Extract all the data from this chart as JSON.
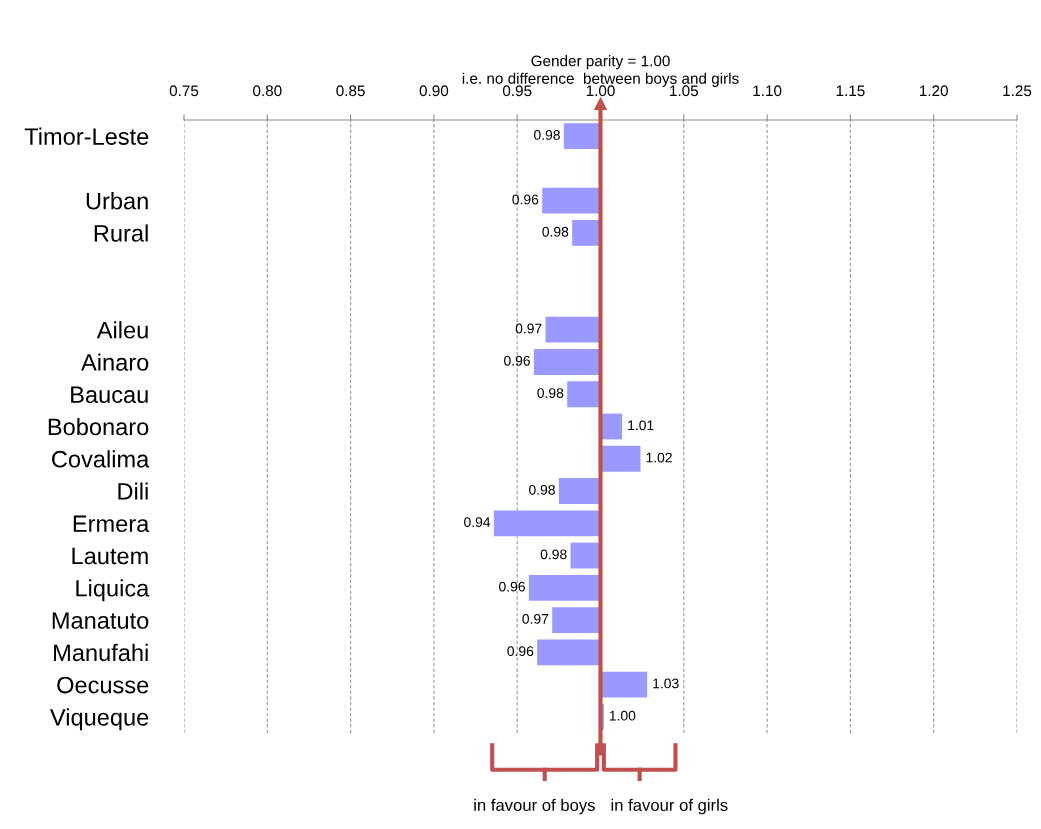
{
  "chart_data": {
    "type": "bar",
    "orientation": "horizontal",
    "categories": [
      "Timor-Leste",
      null,
      "Urban",
      "Rural",
      null,
      null,
      "Aileu",
      "Ainaro",
      "Baucau",
      "Bobonaro",
      "Covalima",
      "Dili",
      "Ermera",
      "Lautem",
      "Liquica",
      "Manatuto",
      "Manufahi",
      "Oecusse",
      "Viqueque"
    ],
    "base": [
      1.0,
      null,
      1.0,
      1.0,
      null,
      null,
      1.0,
      1.0,
      1.0,
      1.0,
      1.0,
      1.0,
      1.0,
      1.0,
      1.0,
      1.0,
      1.0,
      1.0,
      1.0
    ],
    "values": [
      -0.022,
      null,
      -0.035,
      -0.017,
      null,
      null,
      -0.033,
      -0.04,
      -0.02,
      0.013,
      0.024,
      -0.025,
      -0.064,
      -0.018,
      -0.043,
      -0.029,
      -0.038,
      0.028,
      0.002
    ],
    "value_labels": [
      "0.98",
      null,
      "0.96",
      "0.98",
      null,
      null,
      "0.97",
      "0.96",
      "0.98",
      "1.01",
      "1.02",
      "0.98",
      "0.94",
      "0.98",
      "0.96",
      "0.97",
      "0.96",
      "1.03",
      "1.00"
    ],
    "color": "#9999ff",
    "xlim": [
      0.75,
      1.25
    ],
    "xticks": [
      {
        "value": 0.75,
        "label": "0.75"
      },
      {
        "value": 0.8,
        "label": "0.80"
      },
      {
        "value": 0.85,
        "label": "0.85"
      },
      {
        "value": 0.9,
        "label": "0.90"
      },
      {
        "value": 0.95,
        "label": "0.95"
      },
      {
        "value": 1.0,
        "label": "1.00"
      },
      {
        "value": 1.05,
        "label": "1.05"
      },
      {
        "value": 1.1,
        "label": "1.10"
      },
      {
        "value": 1.15,
        "label": "1.15"
      },
      {
        "value": 1.2,
        "label": "1.20"
      },
      {
        "value": 1.25,
        "label": "1.25"
      }
    ],
    "grid": "x",
    "ref_lines": [
      {
        "axis": "x",
        "value": 1.0,
        "label": "Gender parity = 1.00\ni.e. no difference  between boys and girls",
        "color": "#c0504d"
      }
    ],
    "annotations": [
      "in favour of boys",
      "in favour of girls"
    ]
  }
}
